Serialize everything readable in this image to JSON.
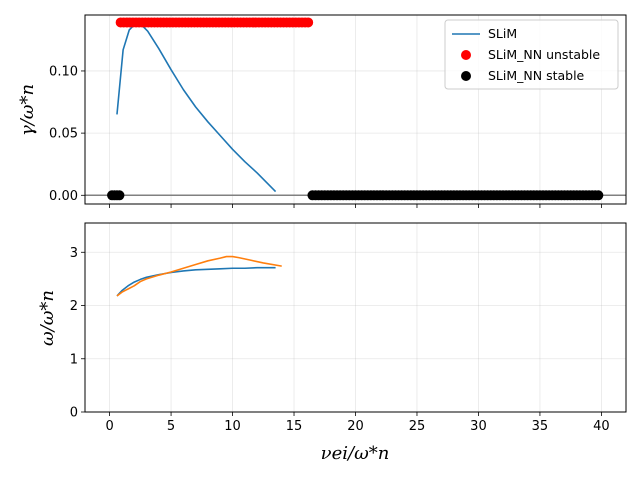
{
  "chart_data": [
    {
      "type": "scatter",
      "panel": "top",
      "ylabel": "γ/ω*n",
      "xlim": [
        -2,
        42
      ],
      "ylim": [
        -0.007,
        0.145
      ],
      "xticks": [
        0,
        5,
        10,
        15,
        20,
        25,
        30,
        35,
        40
      ],
      "yticks": [
        0.0,
        0.05,
        0.1
      ],
      "ytick_labels": [
        "0.00",
        "0.05",
        "0.10"
      ],
      "grid": true,
      "legend": "top-right",
      "hline": 0,
      "series": [
        {
          "name": "SLiM",
          "kind": "line",
          "color": "#1f77b4",
          "x": [
            0.6,
            1.1,
            1.6,
            2.1,
            2.6,
            3.1,
            4.0,
            5.0,
            6.0,
            7.0,
            8.0,
            9.0,
            10.0,
            11.0,
            12.0,
            13.5
          ],
          "y": [
            0.065,
            0.117,
            0.133,
            0.138,
            0.137,
            0.132,
            0.118,
            0.101,
            0.085,
            0.071,
            0.059,
            0.048,
            0.037,
            0.027,
            0.018,
            0.003
          ]
        },
        {
          "name": "SLiM_NN unstable",
          "kind": "scatter",
          "color": "#ff0000",
          "x_start": 0.9,
          "x_end": 16.3,
          "x_step": 0.25,
          "y": 0.139
        },
        {
          "name": "SLiM_NN stable",
          "kind": "scatter",
          "color": "#000000",
          "segments": [
            {
              "x_start": 0.2,
              "x_end": 0.8,
              "x_step": 0.2,
              "y": 0.0
            },
            {
              "x_start": 16.5,
              "x_end": 39.9,
              "x_step": 0.25,
              "y": 0.0
            }
          ]
        }
      ]
    },
    {
      "type": "line",
      "panel": "bottom",
      "ylabel": "ω/ω*n",
      "xlabel": "νei/ω*n",
      "xlim": [
        -2,
        42
      ],
      "ylim": [
        0,
        3.55
      ],
      "xticks": [
        0,
        5,
        10,
        15,
        20,
        25,
        30,
        35,
        40
      ],
      "yticks": [
        0,
        1,
        2,
        3
      ],
      "grid": true,
      "series": [
        {
          "color": "#1f77b4",
          "x": [
            0.6,
            1.0,
            1.5,
            2.0,
            2.5,
            3.0,
            4.0,
            5.0,
            6.0,
            7.0,
            8.0,
            9.0,
            10.0,
            11.0,
            12.0,
            13.5
          ],
          "y": [
            2.18,
            2.28,
            2.37,
            2.44,
            2.49,
            2.53,
            2.58,
            2.62,
            2.65,
            2.67,
            2.68,
            2.69,
            2.7,
            2.7,
            2.71,
            2.71
          ]
        },
        {
          "color": "#ff7f0e",
          "x": [
            0.6,
            1.0,
            1.5,
            2.0,
            2.5,
            3.0,
            4.0,
            5.0,
            6.0,
            7.0,
            8.0,
            9.0,
            9.5,
            10.0,
            10.5,
            11.5,
            12.5,
            14.0
          ],
          "y": [
            2.18,
            2.25,
            2.31,
            2.37,
            2.45,
            2.5,
            2.57,
            2.63,
            2.7,
            2.77,
            2.84,
            2.89,
            2.92,
            2.92,
            2.9,
            2.85,
            2.8,
            2.74
          ]
        }
      ]
    }
  ]
}
